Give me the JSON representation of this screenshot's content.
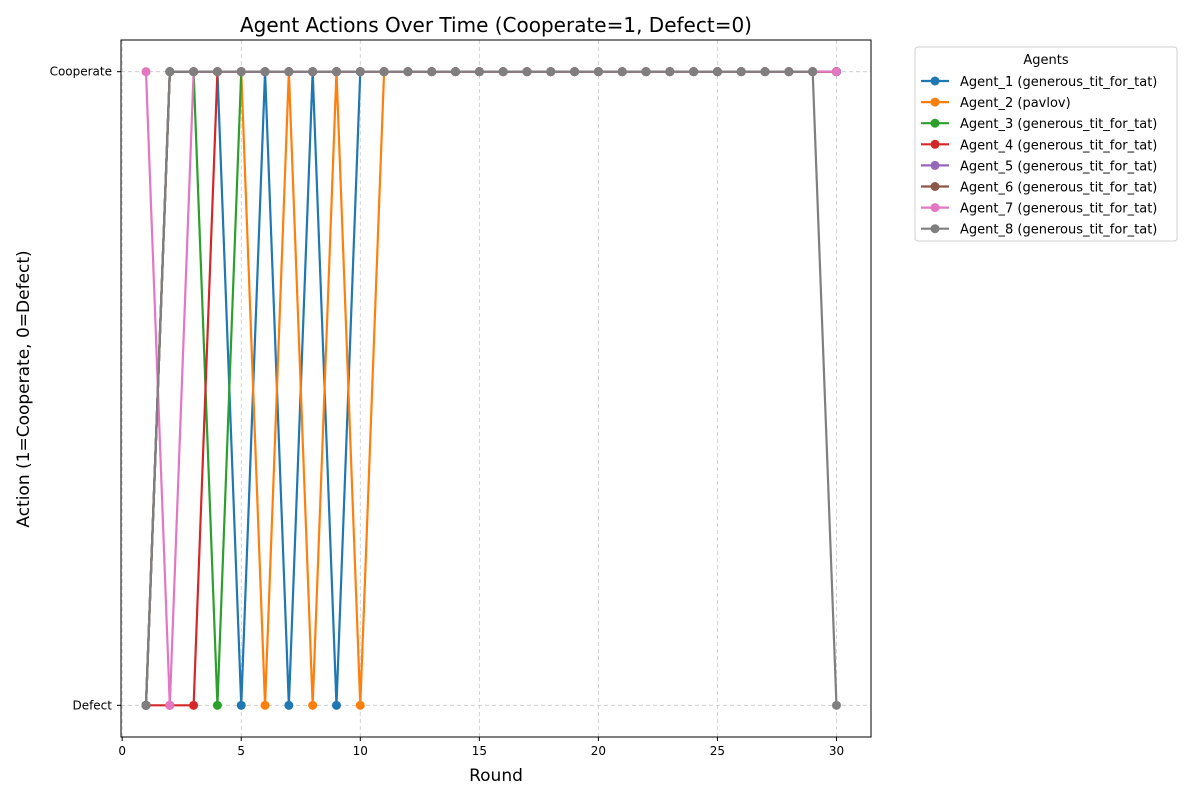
{
  "chart_data": {
    "type": "line",
    "title": "Agent Actions Over Time (Cooperate=1, Defect=0)",
    "xlabel": "Round",
    "ylabel": "Action (1=Cooperate, 0=Defect)",
    "xlim": [
      -0.05,
      31.45
    ],
    "ylim": [
      -0.05,
      1.05
    ],
    "xticks": [
      0,
      5,
      10,
      15,
      20,
      25,
      30
    ],
    "yticks": [
      {
        "value": 0,
        "label": "Defect"
      },
      {
        "value": 1,
        "label": "Cooperate"
      }
    ],
    "grid": true,
    "legend": {
      "title": "Agents",
      "placement": "outside-upper-right"
    },
    "x": [
      1,
      2,
      3,
      4,
      5,
      6,
      7,
      8,
      9,
      10,
      11,
      12,
      13,
      14,
      15,
      16,
      17,
      18,
      19,
      20,
      21,
      22,
      23,
      24,
      25,
      26,
      27,
      28,
      29,
      30
    ],
    "series": [
      {
        "name": "Agent_1 (generous_tit_for_tat)",
        "color": "#1f77b4",
        "values": [
          0,
          1,
          1,
          1,
          0,
          1,
          0,
          1,
          0,
          1,
          1,
          1,
          1,
          1,
          1,
          1,
          1,
          1,
          1,
          1,
          1,
          1,
          1,
          1,
          1,
          1,
          1,
          1,
          1,
          1
        ]
      },
      {
        "name": "Agent_2 (pavlov)",
        "color": "#ff7f0e",
        "values": [
          0,
          1,
          1,
          1,
          1,
          0,
          1,
          0,
          1,
          0,
          1,
          1,
          1,
          1,
          1,
          1,
          1,
          1,
          1,
          1,
          1,
          1,
          1,
          1,
          1,
          1,
          1,
          1,
          1,
          1
        ]
      },
      {
        "name": "Agent_3 (generous_tit_for_tat)",
        "color": "#2ca02c",
        "values": [
          0,
          1,
          1,
          0,
          1,
          1,
          1,
          1,
          1,
          1,
          1,
          1,
          1,
          1,
          1,
          1,
          1,
          1,
          1,
          1,
          1,
          1,
          1,
          1,
          1,
          1,
          1,
          1,
          1,
          1
        ]
      },
      {
        "name": "Agent_4 (generous_tit_for_tat)",
        "color": "#d62728",
        "values": [
          0,
          0,
          0,
          1,
          1,
          1,
          1,
          1,
          1,
          1,
          1,
          1,
          1,
          1,
          1,
          1,
          1,
          1,
          1,
          1,
          1,
          1,
          1,
          1,
          1,
          1,
          1,
          1,
          1,
          1
        ]
      },
      {
        "name": "Agent_5 (generous_tit_for_tat)",
        "color": "#9467bd",
        "values": [
          0,
          1,
          1,
          1,
          1,
          1,
          1,
          1,
          1,
          1,
          1,
          1,
          1,
          1,
          1,
          1,
          1,
          1,
          1,
          1,
          1,
          1,
          1,
          1,
          1,
          1,
          1,
          1,
          1,
          1
        ]
      },
      {
        "name": "Agent_6 (generous_tit_for_tat)",
        "color": "#8c564b",
        "values": [
          0,
          1,
          1,
          1,
          1,
          1,
          1,
          1,
          1,
          1,
          1,
          1,
          1,
          1,
          1,
          1,
          1,
          1,
          1,
          1,
          1,
          1,
          1,
          1,
          1,
          1,
          1,
          1,
          1,
          1
        ]
      },
      {
        "name": "Agent_7 (generous_tit_for_tat)",
        "color": "#e377c2",
        "values": [
          1,
          0,
          1,
          1,
          1,
          1,
          1,
          1,
          1,
          1,
          1,
          1,
          1,
          1,
          1,
          1,
          1,
          1,
          1,
          1,
          1,
          1,
          1,
          1,
          1,
          1,
          1,
          1,
          1,
          1
        ]
      },
      {
        "name": "Agent_8 (generous_tit_for_tat)",
        "color": "#7f7f7f",
        "values": [
          0,
          1,
          1,
          1,
          1,
          1,
          1,
          1,
          1,
          1,
          1,
          1,
          1,
          1,
          1,
          1,
          1,
          1,
          1,
          1,
          1,
          1,
          1,
          1,
          1,
          1,
          1,
          1,
          1,
          0
        ]
      }
    ]
  }
}
